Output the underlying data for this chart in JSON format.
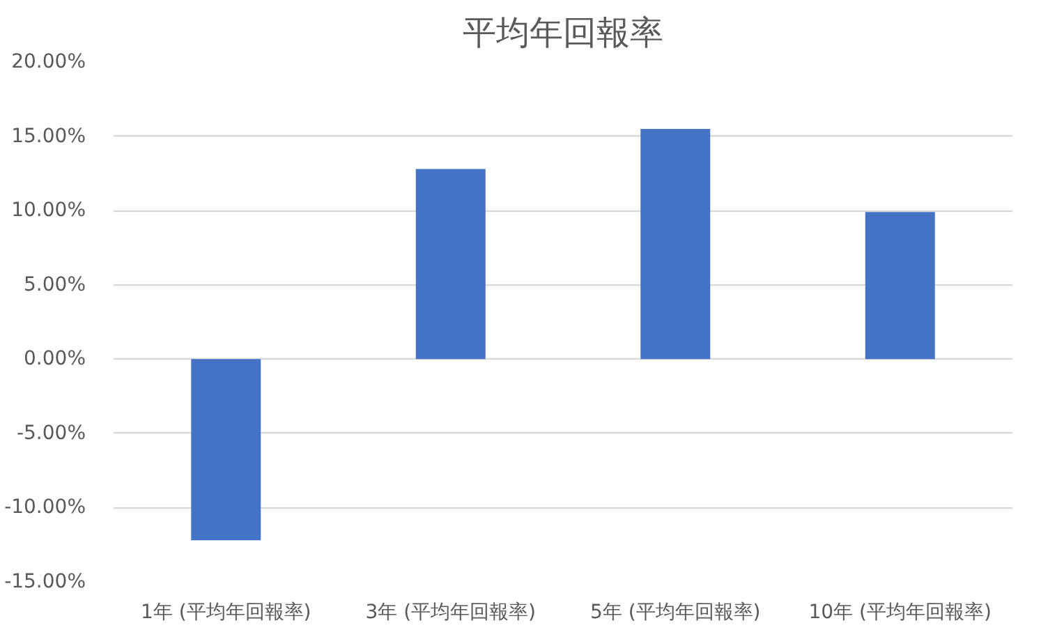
{
  "chart_data": {
    "type": "bar",
    "title": "平均年回報率",
    "categories": [
      "1年 (平均年回報率)",
      "3年 (平均年回報率)",
      "5年 (平均年回報率)",
      "10年 (平均年回報率)"
    ],
    "values": [
      -12.2,
      12.8,
      15.5,
      9.9
    ],
    "color": "#4472c4",
    "ylim": [
      -15,
      20
    ],
    "yticks": [
      {
        "value": -15,
        "label": "-15.00%"
      },
      {
        "value": -10,
        "label": "-10.00%"
      },
      {
        "value": -5,
        "label": "-5.00%"
      },
      {
        "value": 0,
        "label": "0.00%"
      },
      {
        "value": 5,
        "label": "5.00%"
      },
      {
        "value": 10,
        "label": "10.00%"
      },
      {
        "value": 15,
        "label": "15.00%"
      },
      {
        "value": 20,
        "label": "20.00%"
      }
    ],
    "grid": "y"
  }
}
